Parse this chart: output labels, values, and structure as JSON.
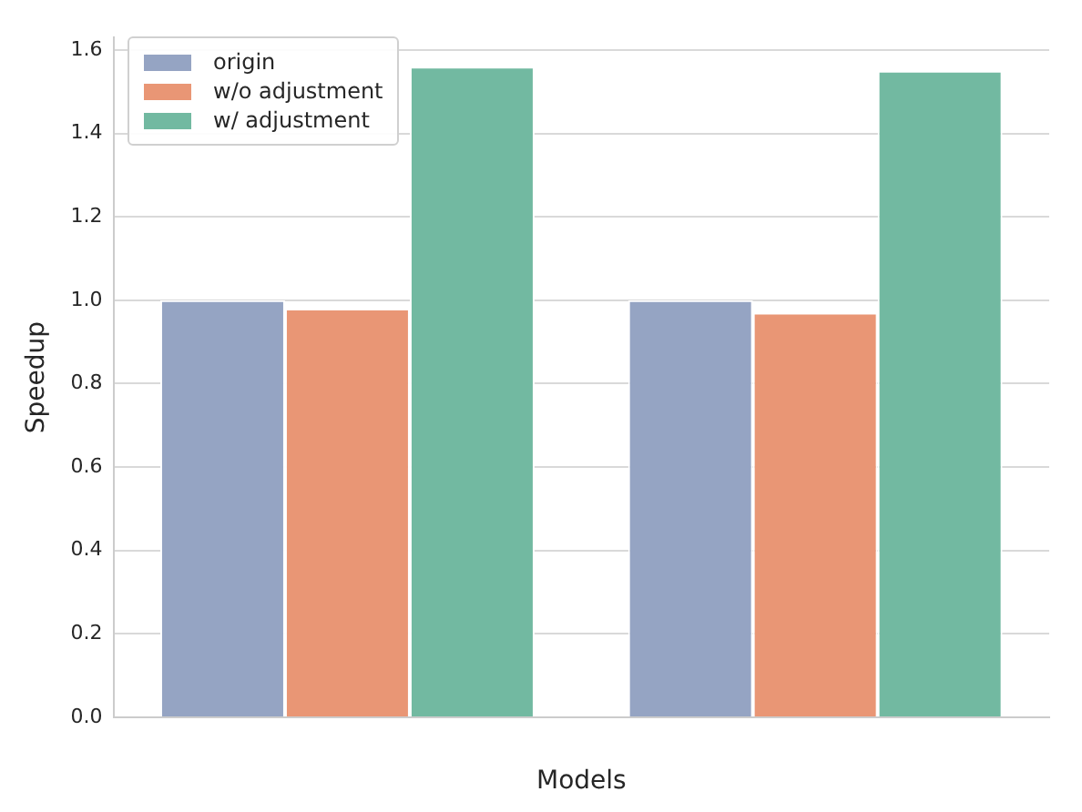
{
  "chart_data": {
    "type": "bar",
    "xlabel": "Models",
    "ylabel": "Speedup",
    "categories": [
      null,
      null
    ],
    "series": [
      {
        "name": "origin",
        "color": "#95a4c3",
        "values": [
          1.0,
          1.0
        ]
      },
      {
        "name": "w/o adjustment",
        "color": "#e99675",
        "values": [
          0.98,
          0.97
        ]
      },
      {
        "name": "w/ adjustment",
        "color": "#72b9a1",
        "values": [
          1.56,
          1.55
        ]
      }
    ],
    "ylim": [
      0,
      1.63
    ],
    "yticks": [
      {
        "value": 0,
        "label": "0.0"
      },
      0.2,
      0.4,
      0.6,
      0.8,
      {
        "value": 1,
        "label": "1.0"
      },
      1.2,
      1.4,
      1.6
    ],
    "grid": "y",
    "legend": "top left"
  }
}
